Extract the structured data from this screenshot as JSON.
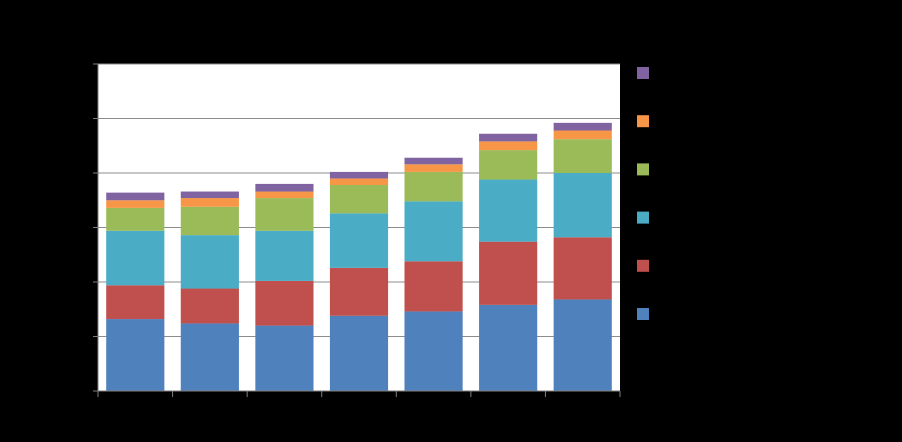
{
  "chart_data": {
    "type": "bar",
    "stacked": true,
    "ylim": [
      0,
      300
    ],
    "yticks": [
      0,
      50,
      100,
      150,
      200,
      250,
      300
    ],
    "grid": true,
    "legend_position": "right",
    "categories": [
      "",
      "",
      "",
      "",
      "",
      "",
      ""
    ],
    "series": [
      {
        "color": "#4F81BD",
        "values": [
          66,
          62,
          60,
          69,
          73,
          79,
          84
        ]
      },
      {
        "color": "#C0504D",
        "values": [
          31,
          32,
          41,
          44,
          46,
          58,
          57
        ]
      },
      {
        "color": "#4BACC6",
        "values": [
          50,
          49,
          46,
          50,
          55,
          57,
          59
        ]
      },
      {
        "color": "#9BBB59",
        "values": [
          21,
          26,
          30,
          26,
          27,
          27,
          31
        ]
      },
      {
        "color": "#F79646",
        "values": [
          7,
          8,
          6,
          6,
          7,
          8,
          8
        ]
      },
      {
        "color": "#8064A2",
        "values": [
          7,
          6,
          7,
          6,
          6,
          7,
          7
        ]
      }
    ]
  }
}
